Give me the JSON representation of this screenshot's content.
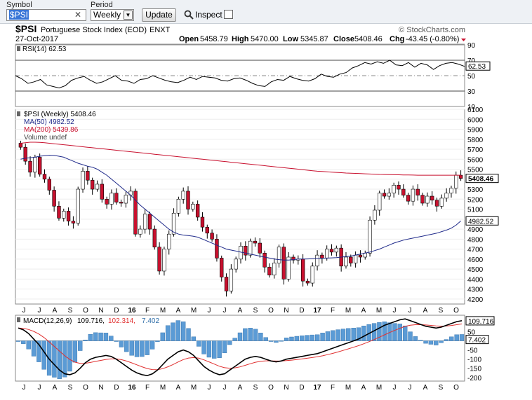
{
  "toolbar": {
    "symbol_label": "Symbol",
    "symbol_value": "$PSI",
    "clear_glyph": "✕",
    "period_label": "Period",
    "period_value": "Weekly",
    "update_label": "Update",
    "inspect_label": "Inspect"
  },
  "header": {
    "symbol": "$PSI",
    "name": "Portuguese Stock Index (EOD)",
    "exchange": "ENXT",
    "date": "27-Oct-2017",
    "brand": "© StockCharts.com",
    "open_label": "Open",
    "open_value": "5458.79",
    "high_label": "High",
    "high_value": "5470.00",
    "low_label": "Low",
    "low_value": "5345.87",
    "close_label": "Close",
    "close_value": "5408.46",
    "chg_label": "Chg",
    "chg_value": "-43.45 (-0.80%)"
  },
  "colors": {
    "up": "#ffffff",
    "down": "#c8102e",
    "ma50": "#1f2a8a",
    "ma200": "#c8102e",
    "macd": "#000000",
    "signal": "#e03030",
    "hist": "#5b9bd5"
  },
  "chart_data": [
    {
      "type": "line",
      "title": "RSI(14) 62.53",
      "ylim": [
        10,
        90
      ],
      "yticks": [
        "90",
        "70",
        "50",
        "30",
        "10"
      ],
      "last_value": "62.53",
      "values": [
        50,
        46,
        40,
        42,
        45,
        38,
        36,
        34,
        37,
        44,
        47,
        49,
        44,
        40,
        42,
        46,
        50,
        44,
        43,
        40,
        45,
        46,
        50,
        47,
        44,
        42,
        41,
        44,
        48,
        45,
        49,
        48,
        47,
        44,
        43,
        46,
        47,
        44,
        40,
        37,
        36,
        42,
        45,
        44,
        49,
        46,
        44,
        43,
        46,
        52,
        49,
        48,
        52,
        54,
        60,
        63,
        67,
        65,
        68,
        66,
        70,
        64,
        63,
        67,
        61,
        66,
        64,
        58,
        63,
        66,
        67,
        65,
        62
      ]
    },
    {
      "type": "candlestick",
      "legend": [
        "$PSI (Weekly) 5408.46",
        "MA(50) 4982.52",
        "MA(200) 5439.86",
        "Volume undef"
      ],
      "ylim": [
        4150,
        6100
      ],
      "yticks": [
        "6100",
        "6000",
        "5900",
        "5800",
        "5700",
        "5600",
        "5500",
        "5400",
        "5300",
        "5200",
        "5100",
        "5000",
        "4900",
        "4800",
        "4700",
        "4600",
        "4500",
        "4400",
        "4300",
        "4200"
      ],
      "x_labels": [
        "J",
        "J",
        "A",
        "S",
        "O",
        "N",
        "D",
        "16",
        "F",
        "M",
        "A",
        "M",
        "J",
        "J",
        "A",
        "S",
        "O",
        "N",
        "D",
        "17",
        "F",
        "M",
        "A",
        "M",
        "J",
        "J",
        "A",
        "S",
        "O"
      ],
      "last_close": "5408.46",
      "ma50_last": "4982.52",
      "closes": [
        5720,
        5580,
        5470,
        5620,
        5450,
        5400,
        5290,
        5130,
        5010,
        5080,
        4980,
        4960,
        5300,
        5480,
        5390,
        5300,
        5350,
        5200,
        5150,
        5260,
        5170,
        5160,
        5240,
        5280,
        4850,
        4900,
        5050,
        4900,
        4720,
        4480,
        4700,
        4850,
        5060,
        5200,
        5280,
        5100,
        5150,
        5020,
        4920,
        4860,
        4800,
        4610,
        4420,
        4280,
        4500,
        4600,
        4730,
        4640,
        4780,
        4760,
        4660,
        4520,
        4440,
        4560,
        4720,
        4400,
        4620,
        4590,
        4600,
        4380,
        4360,
        4530,
        4640,
        4610,
        4700,
        4670,
        4710,
        4530,
        4620,
        4560,
        4640,
        4620,
        4660,
        4990,
        5090,
        5260,
        5230,
        5260,
        5340,
        5300,
        5240,
        5180,
        5300,
        5240,
        5160,
        5230,
        5190,
        5130,
        5210,
        5260,
        5310,
        5440,
        5408
      ],
      "ma50": [
        5600,
        5610,
        5615,
        5620,
        5630,
        5635,
        5640,
        5638,
        5630,
        5620,
        5600,
        5580,
        5560,
        5545,
        5530,
        5520,
        5500,
        5470,
        5440,
        5400,
        5360,
        5320,
        5280,
        5240,
        5190,
        5140,
        5100,
        5060,
        5020,
        4980,
        4940,
        4900,
        4870,
        4850,
        4840,
        4835,
        4830,
        4820,
        4800,
        4780,
        4760,
        4740,
        4720,
        4700,
        4690,
        4680,
        4670,
        4660,
        4650,
        4640,
        4630,
        4620,
        4610,
        4600,
        4595,
        4590,
        4590,
        4595,
        4600,
        4600,
        4602,
        4604,
        4605,
        4607,
        4610,
        4612,
        4615,
        4620,
        4625,
        4630,
        4640,
        4650,
        4660,
        4670,
        4685,
        4700,
        4720,
        4740,
        4760,
        4775,
        4790,
        4800,
        4810,
        4820,
        4830,
        4840,
        4850,
        4860,
        4875,
        4890,
        4910,
        4940,
        4982
      ],
      "ma200": [
        5760,
        5765,
        5770,
        5770,
        5768,
        5765,
        5760,
        5755,
        5750,
        5745,
        5740,
        5735,
        5730,
        5725,
        5720,
        5715,
        5710,
        5705,
        5700,
        5695,
        5690,
        5685,
        5680,
        5675,
        5670,
        5665,
        5660,
        5655,
        5650,
        5645,
        5640,
        5635,
        5630,
        5625,
        5620,
        5615,
        5610,
        5605,
        5600,
        5595,
        5590,
        5585,
        5580,
        5575,
        5570,
        5565,
        5560,
        5555,
        5550,
        5545,
        5540,
        5535,
        5530,
        5525,
        5520,
        5515,
        5510,
        5505,
        5500,
        5495,
        5490,
        5485,
        5480,
        5477,
        5474,
        5471,
        5468,
        5465,
        5462,
        5460,
        5458,
        5456,
        5454,
        5452,
        5450,
        5448,
        5447,
        5446,
        5445,
        5444,
        5443,
        5442,
        5441,
        5440,
        5440,
        5440,
        5440,
        5440,
        5440,
        5440,
        5440,
        5440,
        5440
      ]
    },
    {
      "type": "line",
      "title": "MACD(12,26,9) 109.716, 102.314, 7.402",
      "macd_label": "MACD(12,26,9)",
      "macd_value": "109.716,",
      "signal_value": "102.314,",
      "hist_value": "7.402",
      "ylim": [
        -220,
        140
      ],
      "yticks": [
        "100",
        "50",
        "0",
        "-50",
        "-100",
        "-150",
        "-200"
      ],
      "macd": [
        70,
        60,
        40,
        10,
        -20,
        -60,
        -100,
        -130,
        -160,
        -180,
        -185,
        -175,
        -150,
        -120,
        -100,
        -90,
        -85,
        -80,
        -85,
        -100,
        -120,
        -140,
        -160,
        -175,
        -185,
        -190,
        -180,
        -160,
        -130,
        -100,
        -80,
        -60,
        -50,
        -60,
        -80,
        -110,
        -140,
        -160,
        -175,
        -185,
        -180,
        -160,
        -140,
        -120,
        -100,
        -90,
        -85,
        -90,
        -100,
        -110,
        -115,
        -110,
        -100,
        -95,
        -90,
        -85,
        -80,
        -75,
        -70,
        -60,
        -50,
        -40,
        -30,
        -20,
        -10,
        0,
        10,
        25,
        40,
        55,
        70,
        85,
        95,
        105,
        115,
        120,
        110,
        100,
        90,
        80,
        75,
        70,
        75,
        85,
        95,
        105,
        110
      ]
    }
  ]
}
